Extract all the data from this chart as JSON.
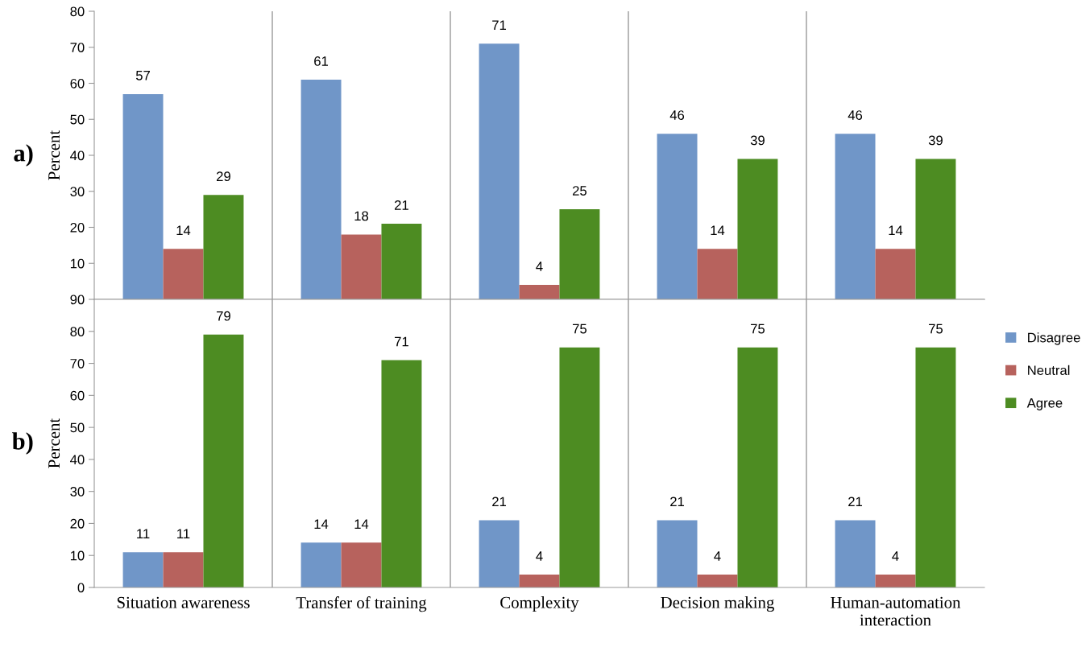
{
  "chart_data": [
    {
      "type": "bar",
      "ylabel": "Percent",
      "annotations": [
        "a)"
      ],
      "categories": [
        null,
        null,
        null,
        null,
        null
      ],
      "series": [
        {
          "color": "#7096c8",
          "values": [
            57,
            61,
            71,
            46,
            46
          ]
        },
        {
          "color": "#b7625d",
          "values": [
            14,
            18,
            4,
            14,
            14
          ]
        },
        {
          "color": "#4d8c22",
          "values": [
            29,
            21,
            25,
            39,
            39
          ]
        }
      ],
      "ylim": [
        0,
        80
      ],
      "yticks": [
        10,
        20,
        30,
        40,
        50,
        60,
        70,
        80
      ],
      "grid": "x",
      "data_labels": true,
      "tick_labels": "y"
    },
    {
      "type": "bar",
      "ylabel": "Percent",
      "annotations": [
        "b)"
      ],
      "categories": [
        "Situation awareness",
        "Transfer of training",
        "Complexity",
        "Decision making",
        "Human-automation\ninteraction"
      ],
      "series": [
        {
          "name": "Disagree",
          "color": "#7096c8",
          "values": [
            11,
            14,
            21,
            21,
            21
          ]
        },
        {
          "name": "Neutral",
          "color": "#b7625d",
          "values": [
            11,
            14,
            4,
            4,
            4
          ]
        },
        {
          "name": "Agree",
          "color": "#4d8c22",
          "values": [
            79,
            71,
            75,
            75,
            75
          ]
        }
      ],
      "ylim": [
        0,
        90
      ],
      "yticks": [
        0,
        10,
        20,
        30,
        40,
        50,
        60,
        70,
        80,
        90
      ],
      "grid": "x",
      "data_labels": true,
      "legend": "right"
    }
  ]
}
